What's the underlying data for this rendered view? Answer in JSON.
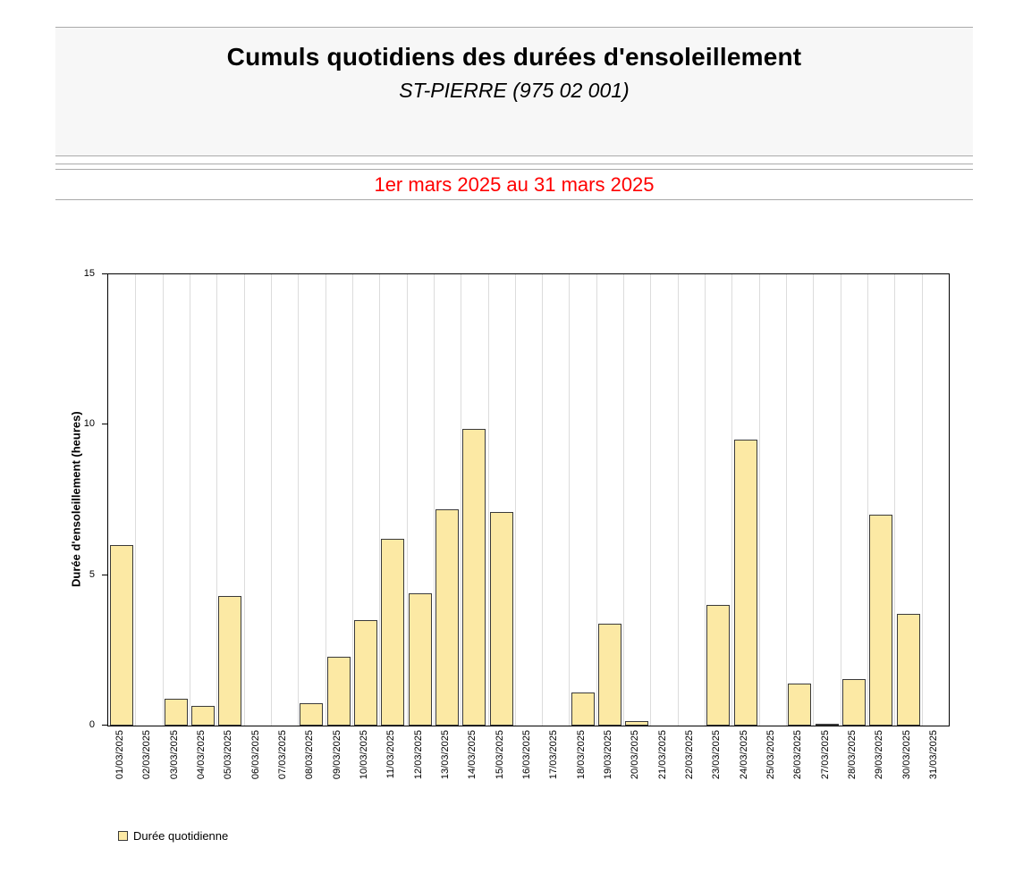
{
  "header": {
    "title": "Cumuls quotidiens des durées d'ensoleillement",
    "subtitle": "ST-PIERRE (975 02 001)"
  },
  "period": {
    "label": "1er mars 2025 au 31 mars 2025",
    "color": "#ff0000"
  },
  "legend": {
    "label": "Durée quotidienne"
  },
  "colors": {
    "bar_fill": "#fce9a4",
    "bar_border": "#3a3a3a",
    "grid": "#dcdcdc",
    "header_bg": "#f7f7f7",
    "period_text": "#ff0000"
  },
  "chart_data": {
    "type": "bar",
    "title": "Cumuls quotidiens des durées d'ensoleillement — ST-PIERRE (975 02 001)",
    "subtitle": "1er mars 2025 au 31 mars 2025",
    "xlabel": "",
    "ylabel": "Durée d'ensoleillement (heures)",
    "ylim": [
      0,
      15
    ],
    "yticks": [
      0,
      5,
      10,
      15
    ],
    "grid": "vertical",
    "legend_position": "bottom-left",
    "legend_entries": [
      "Durée quotidienne"
    ],
    "categories": [
      "01/03/2025",
      "02/03/2025",
      "03/03/2025",
      "04/03/2025",
      "05/03/2025",
      "06/03/2025",
      "07/03/2025",
      "08/03/2025",
      "09/03/2025",
      "10/03/2025",
      "11/03/2025",
      "12/03/2025",
      "13/03/2025",
      "14/03/2025",
      "15/03/2025",
      "16/03/2025",
      "17/03/2025",
      "18/03/2025",
      "19/03/2025",
      "20/03/2025",
      "21/03/2025",
      "22/03/2025",
      "23/03/2025",
      "24/03/2025",
      "25/03/2025",
      "26/03/2025",
      "27/03/2025",
      "28/03/2025",
      "29/03/2025",
      "30/03/2025",
      "31/03/2025"
    ],
    "values": [
      6.0,
      0,
      0.9,
      0.65,
      4.3,
      0,
      0,
      0.75,
      2.3,
      3.5,
      6.2,
      4.4,
      7.2,
      9.85,
      7.1,
      0,
      0,
      1.1,
      3.4,
      0.15,
      0,
      0,
      4.0,
      9.5,
      0,
      1.4,
      0.05,
      1.55,
      7.0,
      3.7,
      0
    ]
  }
}
